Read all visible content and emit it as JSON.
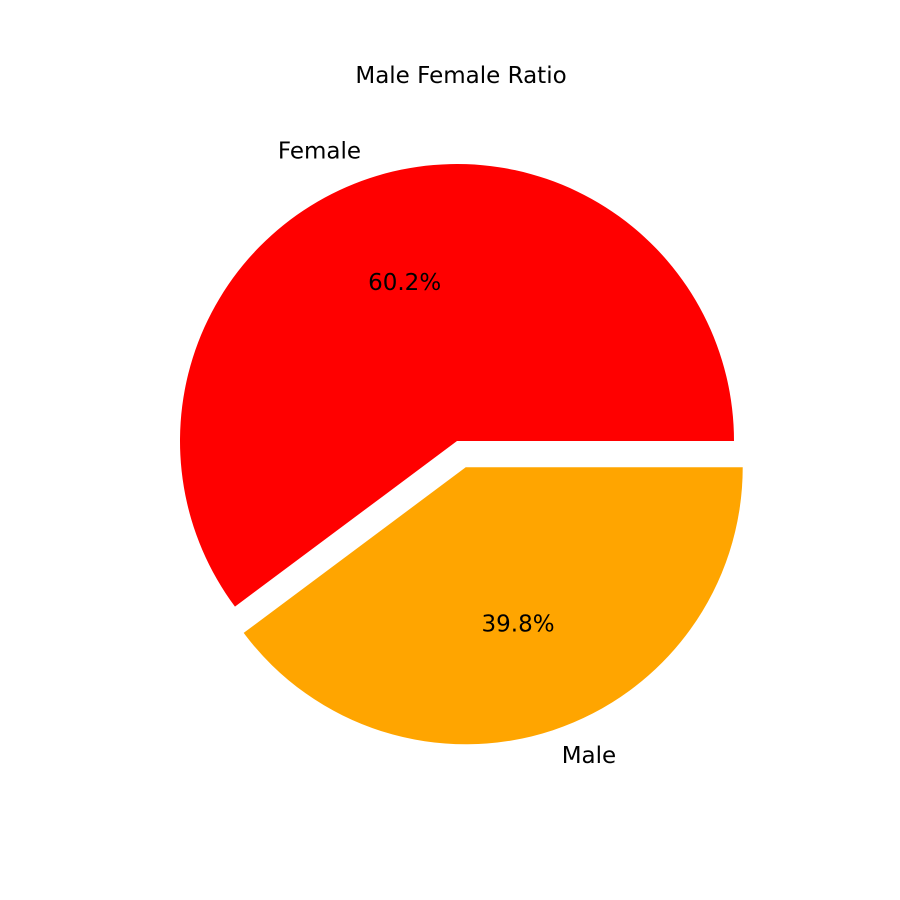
{
  "chart_data": {
    "type": "pie",
    "title": "Male Female Ratio",
    "slices": [
      {
        "label": "Female",
        "value": 60.2,
        "pct_label": "60.2%",
        "color": "#ff0000",
        "explode": 0
      },
      {
        "label": "Male",
        "value": 39.8,
        "pct_label": "39.8%",
        "color": "#ffa500",
        "explode": 0.1
      }
    ],
    "start_angle": 0,
    "direction": "counterclockwise",
    "legend": "none"
  }
}
